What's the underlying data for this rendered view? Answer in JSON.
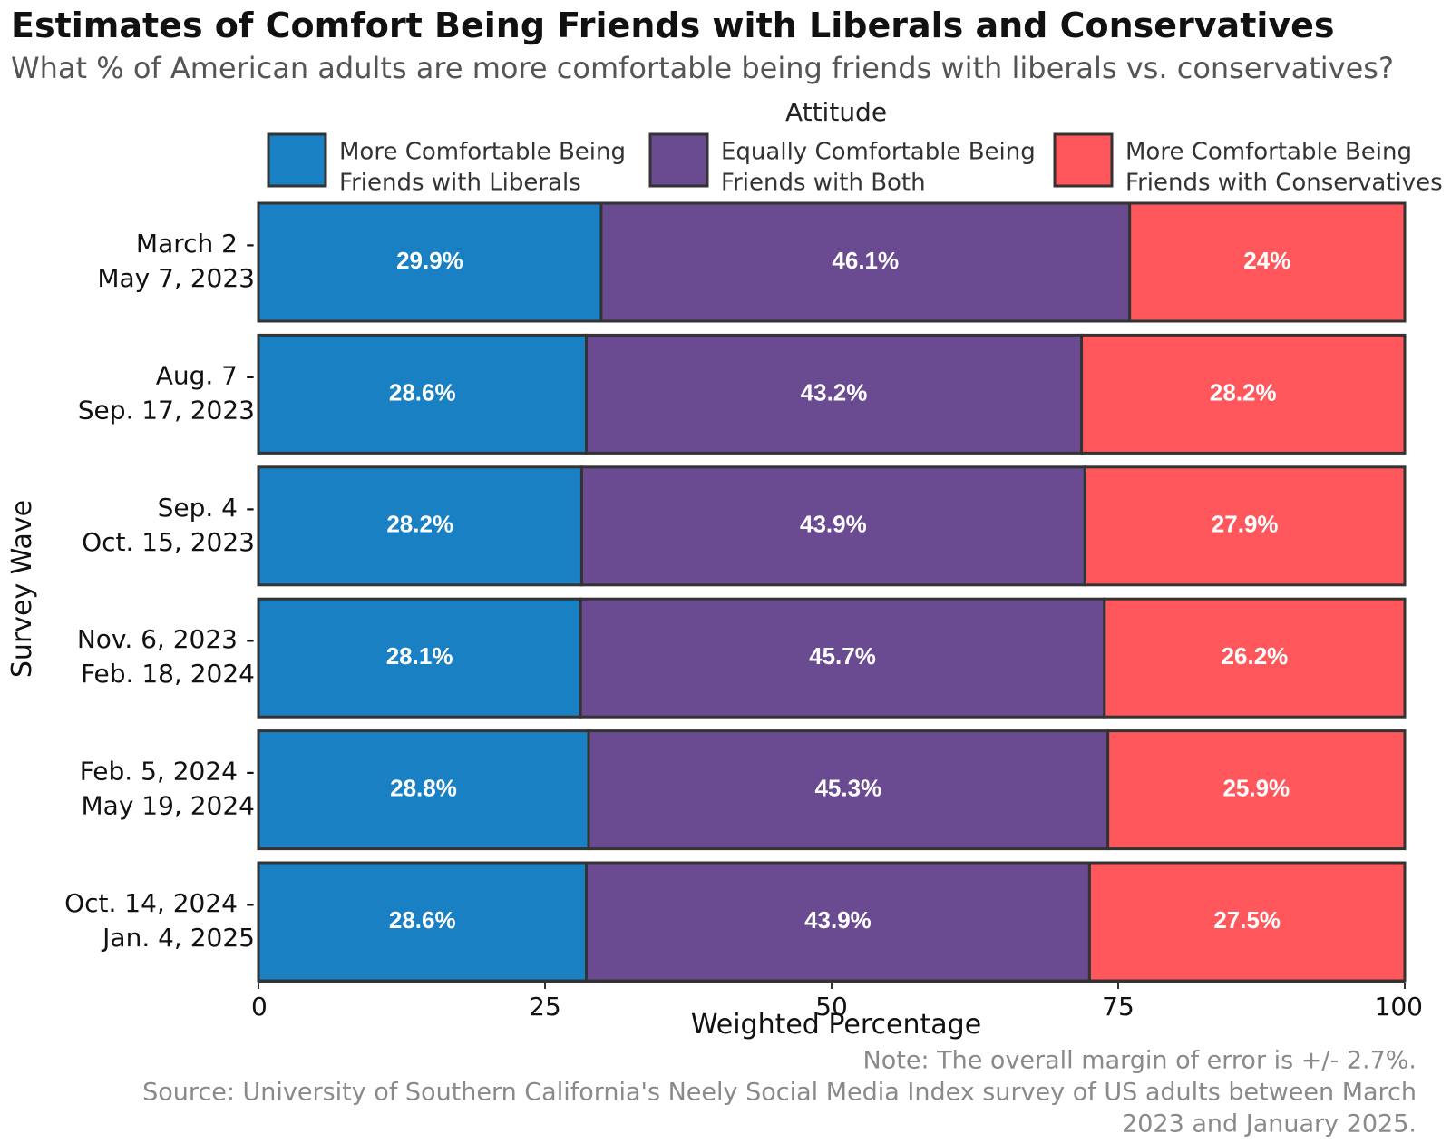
{
  "title": "Estimates of Comfort Being Friends with Liberals and Conservatives",
  "subtitle": "What % of American adults are more comfortable being friends with liberals vs. conservatives?",
  "legend": {
    "title": "Attitude",
    "items": [
      {
        "lines": [
          "More Comfortable Being",
          "Friends with Liberals"
        ],
        "color": "#1a80c4"
      },
      {
        "lines": [
          "Equally Comfortable Being",
          "Friends with Both"
        ],
        "color": "#6a4a91"
      },
      {
        "lines": [
          "More Comfortable Being",
          "Friends with Conservatives"
        ],
        "color": "#ff575c"
      }
    ]
  },
  "chart_data": {
    "type": "bar",
    "orientation": "horizontal",
    "stacked": true,
    "categories": [
      "March 2 - May 7, 2023",
      "Aug. 7 - Sep. 17, 2023",
      "Sep. 4 - Oct. 15, 2023",
      "Nov. 6, 2023 - Feb. 18, 2024",
      "Feb. 5, 2024 - May 19, 2024",
      "Oct. 14, 2024 - Jan. 4, 2025"
    ],
    "category_lines": [
      [
        "March 2 -",
        "May 7, 2023"
      ],
      [
        "Aug. 7 -",
        "Sep. 17, 2023"
      ],
      [
        "Sep. 4 -",
        "Oct. 15, 2023"
      ],
      [
        "Nov. 6, 2023 -",
        "Feb. 18, 2024"
      ],
      [
        "Feb. 5, 2024 -",
        "May 19, 2024"
      ],
      [
        "Oct. 14, 2024 -",
        "Jan. 4, 2025"
      ]
    ],
    "series": [
      {
        "name": "More Comfortable Being Friends with Liberals",
        "color": "#1a80c4",
        "values": [
          29.9,
          28.6,
          28.2,
          28.1,
          28.8,
          28.6
        ],
        "labels": [
          "29.9%",
          "28.6%",
          "28.2%",
          "28.1%",
          "28.8%",
          "28.6%"
        ]
      },
      {
        "name": "Equally Comfortable Being Friends with Both",
        "color": "#6a4a91",
        "values": [
          46.1,
          43.2,
          43.9,
          45.7,
          45.3,
          43.9
        ],
        "labels": [
          "46.1%",
          "43.2%",
          "43.9%",
          "45.7%",
          "45.3%",
          "43.9%"
        ]
      },
      {
        "name": "More Comfortable Being Friends with Conservatives",
        "color": "#ff575c",
        "values": [
          24,
          28.2,
          27.9,
          26.2,
          25.9,
          27.5
        ],
        "labels": [
          "24%",
          "28.2%",
          "27.9%",
          "26.2%",
          "25.9%",
          "27.5%"
        ]
      }
    ],
    "xlabel": "Weighted Percentage",
    "ylabel": "Survey Wave",
    "xlim": [
      0,
      100
    ],
    "xticks": [
      0,
      25,
      50,
      75,
      100
    ],
    "xtick_labels": [
      "0",
      "25",
      "50",
      "75",
      "100"
    ],
    "grid": false,
    "legend_position": "top"
  },
  "caption": {
    "lines": [
      "Note: The overall margin of error is +/- 2.7%.",
      "Source: University of Southern California's Neely Social Media Index survey of US adults between March",
      "2023 and January 2025."
    ]
  }
}
